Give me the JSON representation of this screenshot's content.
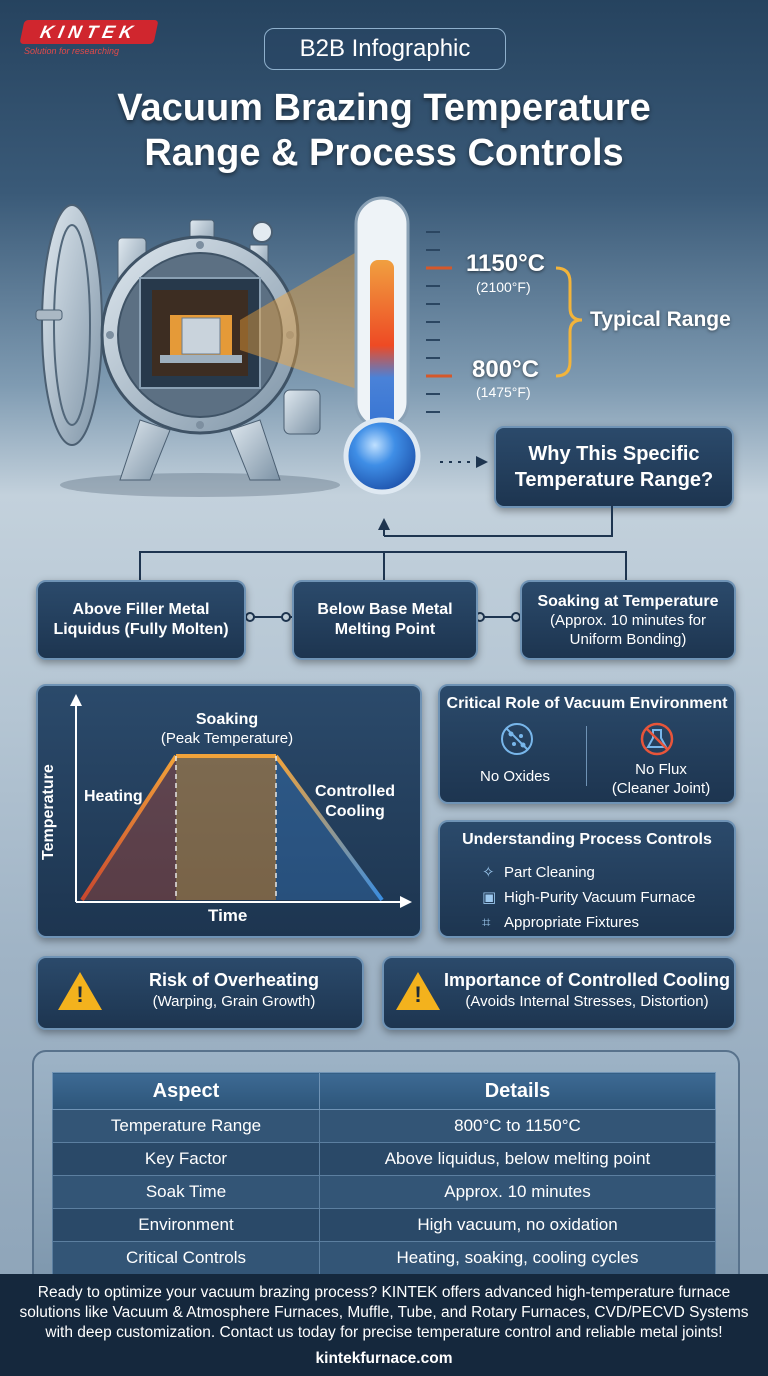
{
  "brand": {
    "name": "KINTEK",
    "tagline": "Solution for researching"
  },
  "badge": "B2B Infographic",
  "title": {
    "line1": "Vacuum Brazing Temperature",
    "line2": "Range & Process Controls"
  },
  "thermometer": {
    "upper_c": "1150°C",
    "upper_f": "(2100°F)",
    "lower_c": "800°C",
    "lower_f": "(1475°F)",
    "range_label": "Typical Range"
  },
  "why_box": {
    "line1": "Why This Specific",
    "line2": "Temperature Range?"
  },
  "conditions": [
    {
      "line1": "Above Filler Metal",
      "line2": "Liquidus (Fully Molten)"
    },
    {
      "line1": "Below Base Metal",
      "line2": "Melting Point"
    },
    {
      "line1": "Soaking at Temperature",
      "line2": "(Approx. 10 minutes for",
      "line3": "Uniform Bonding)"
    }
  ],
  "cycle_chart": {
    "y_axis": "Temperature",
    "x_axis": "Time",
    "heating": "Heating",
    "soaking": "Soaking",
    "soaking_sub": "(Peak Temperature)",
    "cooling_1": "Controlled",
    "cooling_2": "Cooling"
  },
  "vacuum": {
    "title": "Critical Role of Vacuum Environment",
    "item1": "No Oxides",
    "item2_1": "No Flux",
    "item2_2": "(Cleaner Joint)"
  },
  "controls": {
    "title": "Understanding Process Controls",
    "items": [
      "Part Cleaning",
      "High-Purity Vacuum Furnace",
      "Appropriate Fixtures"
    ]
  },
  "warnings": [
    {
      "title": "Risk of Overheating",
      "sub": "(Warping, Grain Growth)"
    },
    {
      "title": "Importance of Controlled Cooling",
      "sub": "(Avoids Internal Stresses, Distortion)"
    }
  ],
  "table": {
    "headers": [
      "Aspect",
      "Details"
    ],
    "rows": [
      [
        "Temperature Range",
        "800°C to 1150°C"
      ],
      [
        "Key Factor",
        "Above liquidus, below melting point"
      ],
      [
        "Soak Time",
        "Approx. 10 minutes"
      ],
      [
        "Environment",
        "High vacuum, no oxidation"
      ],
      [
        "Critical Controls",
        "Heating, soaking, cooling cycles"
      ]
    ]
  },
  "footer": {
    "line1": "Ready to optimize your vacuum brazing process? KINTEK offers advanced high-temperature furnace",
    "line2": "solutions like Vacuum & Atmosphere Furnaces, Muffle, Tube, and Rotary Furnaces, CVD/PECVD Systems",
    "line3": "with deep customization. Contact us today for precise temperature control and reliable metal joints!",
    "url": "kintekfurnace.com"
  }
}
